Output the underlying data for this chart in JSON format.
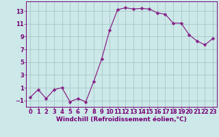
{
  "x": [
    0,
    1,
    2,
    3,
    4,
    5,
    6,
    7,
    8,
    9,
    10,
    11,
    12,
    13,
    14,
    15,
    16,
    17,
    18,
    19,
    20,
    21,
    22,
    23
  ],
  "y": [
    -0.5,
    0.7,
    -0.7,
    0.7,
    1.0,
    -1.2,
    -0.7,
    -1.2,
    2.0,
    5.5,
    10.0,
    13.2,
    13.5,
    13.3,
    13.4,
    13.3,
    12.7,
    12.5,
    11.1,
    11.1,
    9.3,
    8.3,
    7.7,
    8.7
  ],
  "line_color": "#882288",
  "marker": "D",
  "marker_size": 2.5,
  "bg_color": "#cce8e8",
  "grid_color": "#aacccc",
  "xlabel": "Windchill (Refroidissement éolien,°C)",
  "ylabel": "",
  "xlim": [
    -0.5,
    23.5
  ],
  "ylim": [
    -2.0,
    14.5
  ],
  "xticks": [
    0,
    1,
    2,
    3,
    4,
    5,
    6,
    7,
    8,
    9,
    10,
    11,
    12,
    13,
    14,
    15,
    16,
    17,
    18,
    19,
    20,
    21,
    22,
    23
  ],
  "yticks": [
    -1,
    1,
    3,
    5,
    7,
    9,
    11,
    13
  ],
  "tick_color": "#770077",
  "label_color": "#770077",
  "font_size_label": 6.5,
  "font_size_tick": 6.0
}
